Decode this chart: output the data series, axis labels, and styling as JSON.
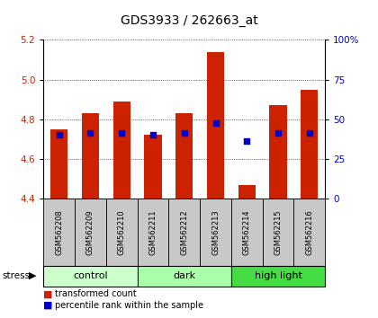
{
  "title": "GDS3933 / 262663_at",
  "samples": [
    "GSM562208",
    "GSM562209",
    "GSM562210",
    "GSM562211",
    "GSM562212",
    "GSM562213",
    "GSM562214",
    "GSM562215",
    "GSM562216"
  ],
  "bar_heights": [
    4.75,
    4.83,
    4.89,
    4.72,
    4.83,
    5.14,
    4.47,
    4.87,
    4.95
  ],
  "blue_dot_y": [
    4.72,
    4.73,
    4.73,
    4.72,
    4.73,
    4.78,
    4.69,
    4.73,
    4.73
  ],
  "ylim": [
    4.4,
    5.2
  ],
  "yticks_left": [
    4.4,
    4.6,
    4.8,
    5.0,
    5.2
  ],
  "yticks_right_labels": [
    "0",
    "25",
    "50",
    "75",
    "100%"
  ],
  "bar_color": "#cc2200",
  "dot_color": "#0000cc",
  "bar_width": 0.55,
  "groups": [
    {
      "label": "control",
      "indices": [
        0,
        1,
        2
      ],
      "color": "#ccffcc"
    },
    {
      "label": "dark",
      "indices": [
        3,
        4,
        5
      ],
      "color": "#aaffaa"
    },
    {
      "label": "high light",
      "indices": [
        6,
        7,
        8
      ],
      "color": "#44dd44"
    }
  ],
  "stress_label": "stress",
  "legend_red": "transformed count",
  "legend_blue": "percentile rank within the sample",
  "axis_color_left": "#cc2200",
  "axis_color_right": "#0000cc",
  "xlabel_area_bg": "#c8c8c8",
  "tick_fontsize": 7.5,
  "label_fontsize": 7,
  "title_fontsize": 10,
  "group_fontsize": 8
}
